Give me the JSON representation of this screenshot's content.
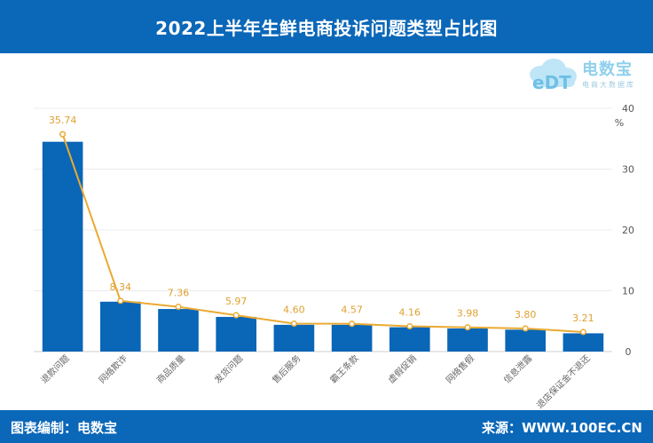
{
  "header": {
    "title": "2022上半年生鲜电商投诉问题类型占比图"
  },
  "logo": {
    "brand": "电数宝",
    "tagline": "电商大数据库",
    "icon": "cloud-edt-logo-icon"
  },
  "footer": {
    "left": "图表编制：电数宝",
    "right": "来源：WWW.100EC.CN"
  },
  "colors": {
    "header": "#0b67b8",
    "bar": "#0a66b7",
    "line": "#eaaa32",
    "label": "#e0a030"
  },
  "chart_data": {
    "type": "bar",
    "title": "2022上半年生鲜电商投诉问题类型占比图",
    "categories": [
      "退款问题",
      "网络欺诈",
      "商品质量",
      "发货问题",
      "售后服务",
      "霸王条款",
      "虚假促销",
      "网络售假",
      "信息泄露",
      "退店保证金不退还"
    ],
    "series": [
      {
        "type": "bar",
        "values": [
          34.5,
          8.2,
          7.0,
          5.7,
          4.4,
          4.4,
          4.0,
          3.8,
          3.6,
          3.0
        ]
      },
      {
        "type": "line",
        "values": [
          35.74,
          8.34,
          7.36,
          5.97,
          4.6,
          4.57,
          4.16,
          3.98,
          3.8,
          3.21
        ]
      }
    ],
    "data_labels": [
      "35.74",
      "8.34",
      "7.36",
      "5.97",
      "4.60",
      "4.57",
      "4.16",
      "3.98",
      "3.80",
      "3.21"
    ],
    "ylabel": "%",
    "ylim": [
      0,
      40
    ],
    "yticks": [
      0,
      10,
      20,
      30,
      40
    ],
    "y_axis_position": "right",
    "grid": true
  }
}
